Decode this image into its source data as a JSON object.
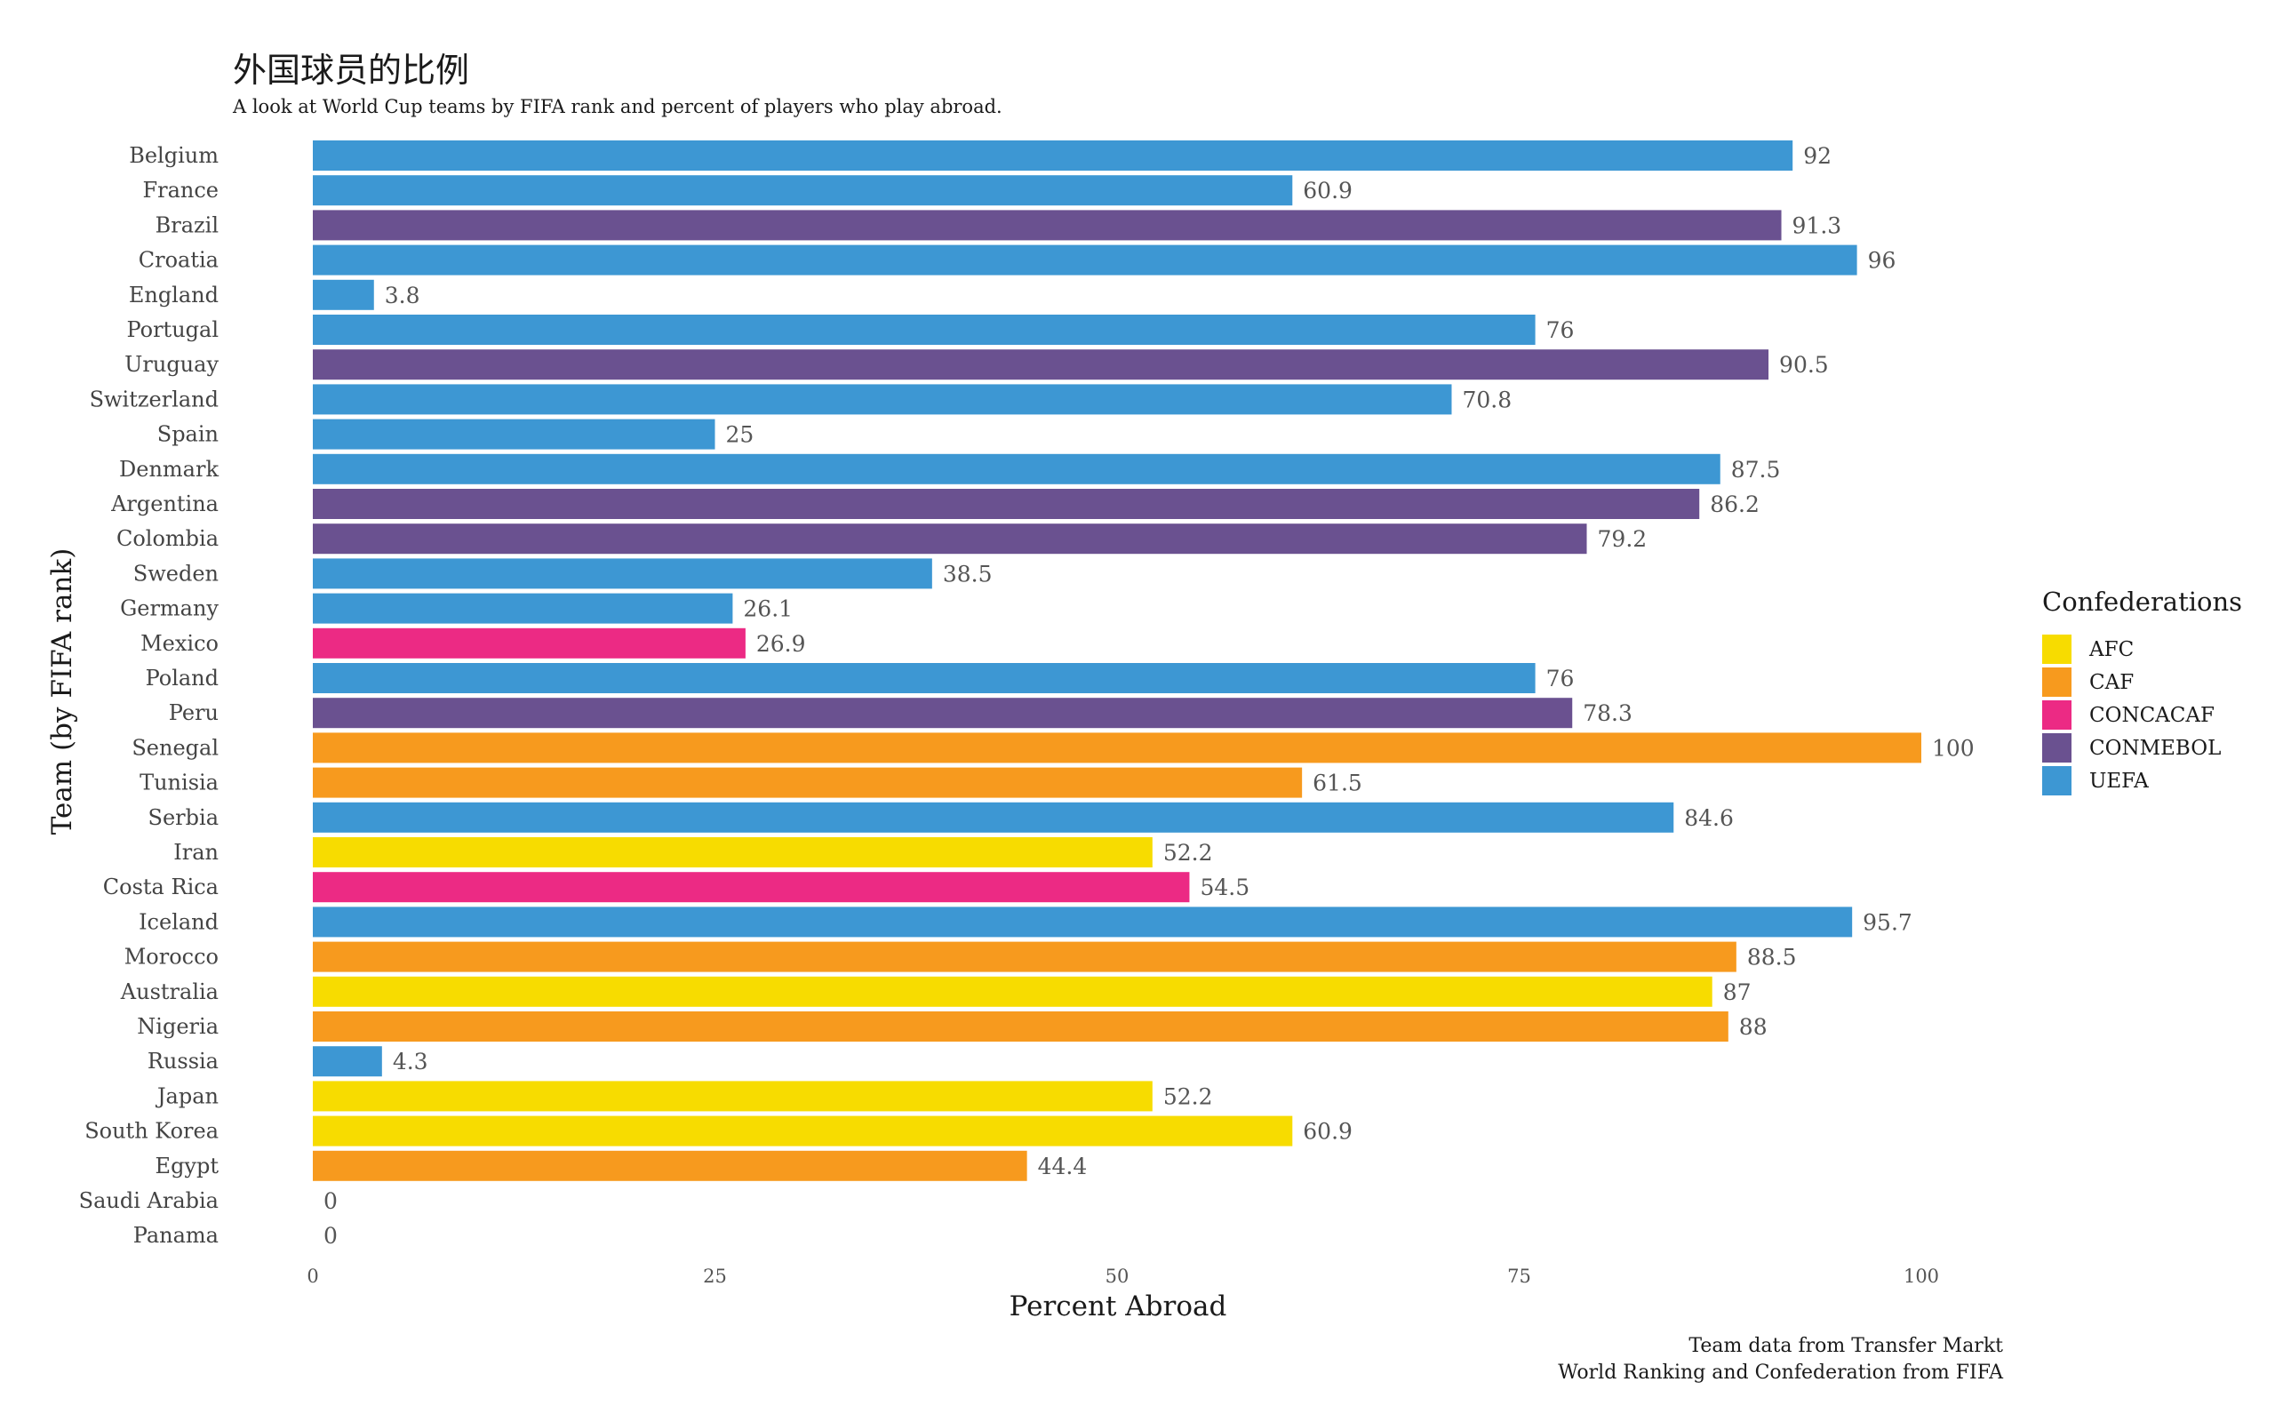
{
  "title": "外国球员的比例",
  "subtitle": "A look at World Cup teams by FIFA rank and percent of players who play abroad.",
  "caption_line1": "Team data from Transfer Markt",
  "caption_line2": "World Ranking and Confederation from FIFA",
  "colors": {
    "AFC": "#F7DC00",
    "CAF": "#F79A1E",
    "CONCACAF": "#EC2A84",
    "CONMEBOL": "#6A5190",
    "UEFA": "#3D97D3"
  },
  "chart_data": {
    "type": "bar",
    "orientation": "horizontal",
    "title": "外国球员的比例",
    "subtitle": "A look at World Cup teams by FIFA rank and percent of players who play abroad.",
    "xlabel": "Percent Abroad",
    "ylabel": "Team (by FIFA rank)",
    "xlim": [
      0,
      100
    ],
    "xticks": [
      0,
      25,
      50,
      75,
      100
    ],
    "grid": false,
    "legend_title": "Confederations",
    "legend_position": "right",
    "legend": [
      "AFC",
      "CAF",
      "CONCACAF",
      "CONMEBOL",
      "UEFA"
    ],
    "categories": [
      "Belgium",
      "France",
      "Brazil",
      "Croatia",
      "England",
      "Portugal",
      "Uruguay",
      "Switzerland",
      "Spain",
      "Denmark",
      "Argentina",
      "Colombia",
      "Sweden",
      "Germany",
      "Mexico",
      "Poland",
      "Peru",
      "Senegal",
      "Tunisia",
      "Serbia",
      "Iran",
      "Costa Rica",
      "Iceland",
      "Morocco",
      "Australia",
      "Nigeria",
      "Russia",
      "Japan",
      "South Korea",
      "Egypt",
      "Saudi Arabia",
      "Panama"
    ],
    "values": [
      92,
      60.9,
      91.3,
      96,
      3.8,
      76,
      90.5,
      70.8,
      25,
      87.5,
      86.2,
      79.2,
      38.5,
      26.1,
      26.9,
      76,
      78.3,
      100,
      61.5,
      84.6,
      52.2,
      54.5,
      95.7,
      88.5,
      87,
      88,
      4.3,
      52.2,
      60.9,
      44.4,
      0,
      0
    ],
    "labels": [
      "92",
      "60.9",
      "91.3",
      "96",
      "3.8",
      "76",
      "90.5",
      "70.8",
      "25",
      "87.5",
      "86.2",
      "79.2",
      "38.5",
      "26.1",
      "26.9",
      "76",
      "78.3",
      "100",
      "61.5",
      "84.6",
      "52.2",
      "54.5",
      "95.7",
      "88.5",
      "87",
      "88",
      "4.3",
      "52.2",
      "60.9",
      "44.4",
      "0",
      "0"
    ],
    "confederations": [
      "UEFA",
      "UEFA",
      "CONMEBOL",
      "UEFA",
      "UEFA",
      "UEFA",
      "CONMEBOL",
      "UEFA",
      "UEFA",
      "UEFA",
      "CONMEBOL",
      "CONMEBOL",
      "UEFA",
      "UEFA",
      "CONCACAF",
      "UEFA",
      "CONMEBOL",
      "CAF",
      "CAF",
      "UEFA",
      "AFC",
      "CONCACAF",
      "UEFA",
      "CAF",
      "AFC",
      "CAF",
      "UEFA",
      "AFC",
      "AFC",
      "CAF",
      "AFC",
      "CONCACAF"
    ]
  }
}
